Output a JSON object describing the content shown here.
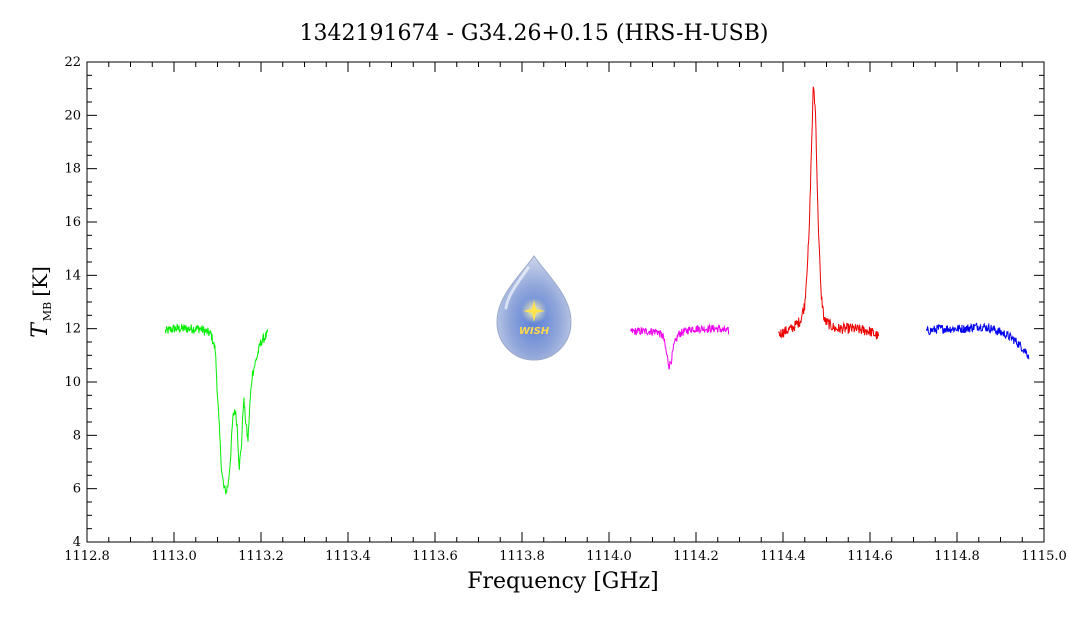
{
  "chart_data": {
    "type": "line",
    "title": "1342191674 - G34.26+0.15 (HRS-H-USB)",
    "xlabel": "Frequency [GHz]",
    "ylabel": {
      "symbol": "T",
      "subscript": "MB",
      "unit": "[K]"
    },
    "xlim": [
      1112.8,
      1115.0
    ],
    "ylim": [
      4,
      22
    ],
    "x_ticks": [
      "1112.8",
      "1113.0",
      "1113.2",
      "1113.4",
      "1113.6",
      "1113.8",
      "1114.0",
      "1114.2",
      "1114.4",
      "1114.6",
      "1114.8",
      "1115.0"
    ],
    "y_ticks": [
      "4",
      "6",
      "8",
      "10",
      "12",
      "14",
      "16",
      "18",
      "20",
      "22"
    ],
    "grid": false,
    "logo": {
      "text": "WISH"
    },
    "series": [
      {
        "color": "#00ee00",
        "noise": 0.18,
        "points": [
          [
            1112.98,
            11.9
          ],
          [
            1113.0,
            12.0
          ],
          [
            1113.03,
            12.0
          ],
          [
            1113.06,
            12.0
          ],
          [
            1113.085,
            11.8
          ],
          [
            1113.095,
            11.2
          ],
          [
            1113.1,
            9.5
          ],
          [
            1113.105,
            8.0
          ],
          [
            1113.11,
            6.6
          ],
          [
            1113.115,
            6.0
          ],
          [
            1113.12,
            5.9
          ],
          [
            1113.125,
            6.2
          ],
          [
            1113.13,
            7.2
          ],
          [
            1113.135,
            8.6
          ],
          [
            1113.14,
            9.0
          ],
          [
            1113.145,
            8.4
          ],
          [
            1113.15,
            6.8
          ],
          [
            1113.155,
            7.6
          ],
          [
            1113.16,
            9.4
          ],
          [
            1113.165,
            8.5
          ],
          [
            1113.17,
            7.8
          ],
          [
            1113.175,
            9.3
          ],
          [
            1113.18,
            10.3
          ],
          [
            1113.19,
            10.9
          ],
          [
            1113.2,
            11.5
          ],
          [
            1113.21,
            11.7
          ],
          [
            1113.215,
            11.8
          ]
        ]
      },
      {
        "color": "#ee00ee",
        "noise": 0.15,
        "points": [
          [
            1114.05,
            11.9
          ],
          [
            1114.08,
            11.9
          ],
          [
            1114.11,
            11.9
          ],
          [
            1114.125,
            11.7
          ],
          [
            1114.133,
            11.0
          ],
          [
            1114.138,
            10.6
          ],
          [
            1114.143,
            10.8
          ],
          [
            1114.15,
            11.4
          ],
          [
            1114.16,
            11.8
          ],
          [
            1114.19,
            12.0
          ],
          [
            1114.22,
            12.0
          ],
          [
            1114.25,
            12.0
          ],
          [
            1114.275,
            11.9
          ]
        ]
      },
      {
        "color": "#ee0000",
        "noise": 0.2,
        "points": [
          [
            1114.39,
            11.8
          ],
          [
            1114.42,
            12.0
          ],
          [
            1114.44,
            12.3
          ],
          [
            1114.45,
            12.9
          ],
          [
            1114.46,
            15.5
          ],
          [
            1114.465,
            18.5
          ],
          [
            1114.47,
            21.2
          ],
          [
            1114.475,
            20.0
          ],
          [
            1114.48,
            16.5
          ],
          [
            1114.487,
            13.4
          ],
          [
            1114.495,
            12.3
          ],
          [
            1114.52,
            12.0
          ],
          [
            1114.56,
            12.0
          ],
          [
            1114.6,
            11.9
          ],
          [
            1114.62,
            11.7
          ]
        ]
      },
      {
        "color": "#0000ee",
        "noise": 0.17,
        "points": [
          [
            1114.73,
            11.9
          ],
          [
            1114.76,
            12.0
          ],
          [
            1114.79,
            12.0
          ],
          [
            1114.82,
            12.0
          ],
          [
            1114.85,
            12.1
          ],
          [
            1114.88,
            12.0
          ],
          [
            1114.91,
            11.8
          ],
          [
            1114.93,
            11.6
          ],
          [
            1114.95,
            11.3
          ],
          [
            1114.965,
            11.0
          ]
        ]
      }
    ]
  }
}
